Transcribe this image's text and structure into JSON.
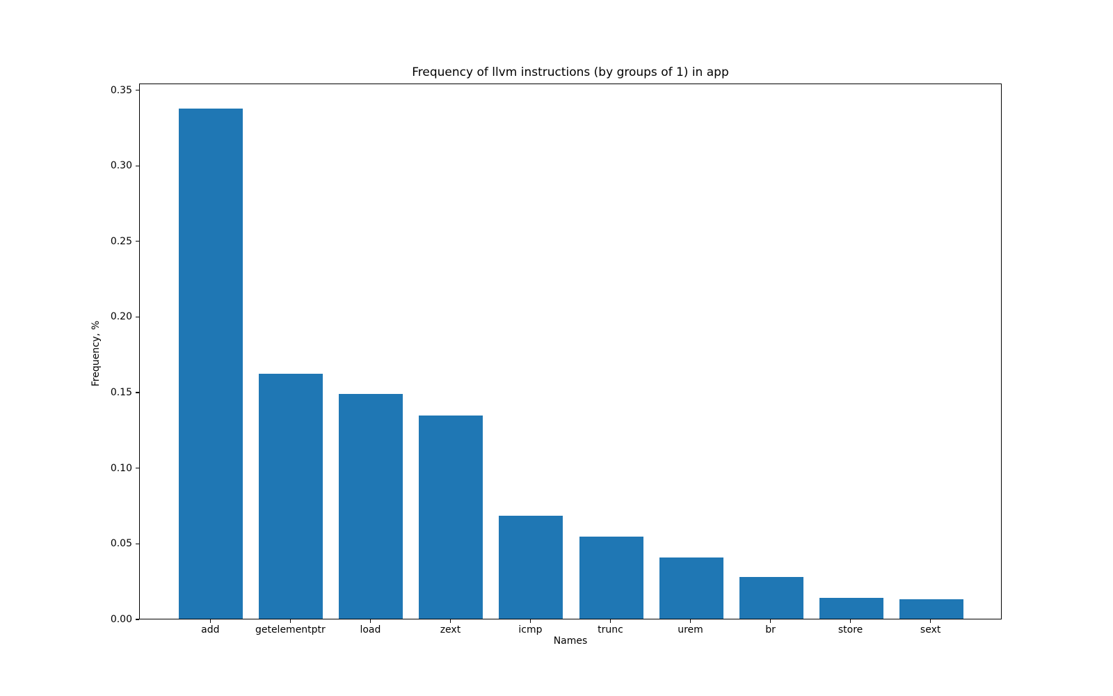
{
  "chart_data": {
    "type": "bar",
    "title": "Frequency of llvm instructions (by groups of 1) in app",
    "xlabel": "Names",
    "ylabel": "Frequency, %",
    "categories": [
      "add",
      "getelementptr",
      "load",
      "zext",
      "icmp",
      "trunc",
      "urem",
      "br",
      "store",
      "sext"
    ],
    "values": [
      0.3375,
      0.1621,
      0.1485,
      0.1345,
      0.068,
      0.0542,
      0.0406,
      0.0276,
      0.0138,
      0.0129
    ],
    "ytick_labels": [
      "0.00",
      "0.05",
      "0.10",
      "0.15",
      "0.20",
      "0.25",
      "0.30",
      "0.35"
    ],
    "ytick_values": [
      0.0,
      0.05,
      0.1,
      0.15,
      0.2,
      0.25,
      0.3,
      0.35
    ],
    "ylim": [
      0,
      0.3544
    ],
    "bar_color": "#1f77b4",
    "grid": false,
    "legend": "none"
  }
}
